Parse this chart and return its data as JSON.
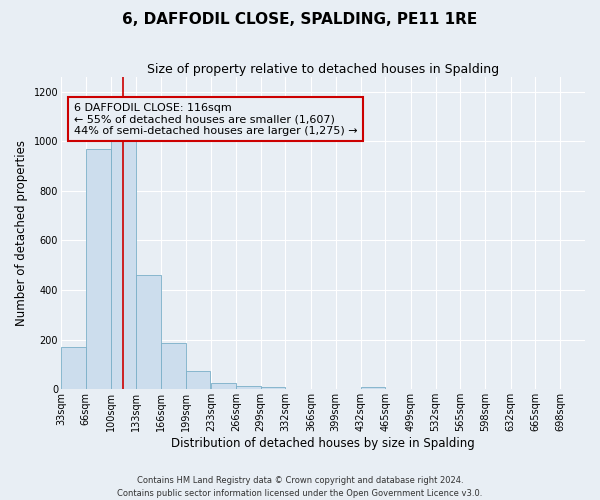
{
  "title": "6, DAFFODIL CLOSE, SPALDING, PE11 1RE",
  "subtitle": "Size of property relative to detached houses in Spalding",
  "xlabel": "Distribution of detached houses by size in Spalding",
  "ylabel": "Number of detached properties",
  "footer_line1": "Contains HM Land Registry data © Crown copyright and database right 2024.",
  "footer_line2": "Contains public sector information licensed under the Open Government Licence v3.0.",
  "bin_edges": [
    33,
    66,
    100,
    133,
    166,
    199,
    233,
    266,
    299,
    332,
    366,
    399,
    432,
    465,
    499,
    532,
    565,
    598,
    632,
    665,
    698
  ],
  "bin_labels": [
    "33sqm",
    "66sqm",
    "100sqm",
    "133sqm",
    "166sqm",
    "199sqm",
    "233sqm",
    "266sqm",
    "299sqm",
    "332sqm",
    "366sqm",
    "399sqm",
    "432sqm",
    "465sqm",
    "499sqm",
    "532sqm",
    "565sqm",
    "598sqm",
    "632sqm",
    "665sqm",
    "698sqm"
  ],
  "bar_heights": [
    170,
    970,
    1000,
    460,
    185,
    75,
    25,
    15,
    10,
    0,
    0,
    0,
    10,
    0,
    0,
    0,
    0,
    0,
    0,
    0
  ],
  "bar_color": "#ccdded",
  "bar_edge_color": "#7aafc8",
  "property_line_x": 116,
  "property_line_color": "#cc0000",
  "annotation_line1": "6 DAFFODIL CLOSE: 116sqm",
  "annotation_line2": "← 55% of detached houses are smaller (1,607)",
  "annotation_line3": "44% of semi-detached houses are larger (1,275) →",
  "annotation_box_color": "#cc0000",
  "ylim": [
    0,
    1260
  ],
  "yticks": [
    0,
    200,
    400,
    600,
    800,
    1000,
    1200
  ],
  "background_color": "#e8eef4",
  "grid_color": "#ffffff",
  "title_fontsize": 11,
  "subtitle_fontsize": 9,
  "annotation_fontsize": 8,
  "axis_label_fontsize": 8.5,
  "tick_label_fontsize": 7
}
